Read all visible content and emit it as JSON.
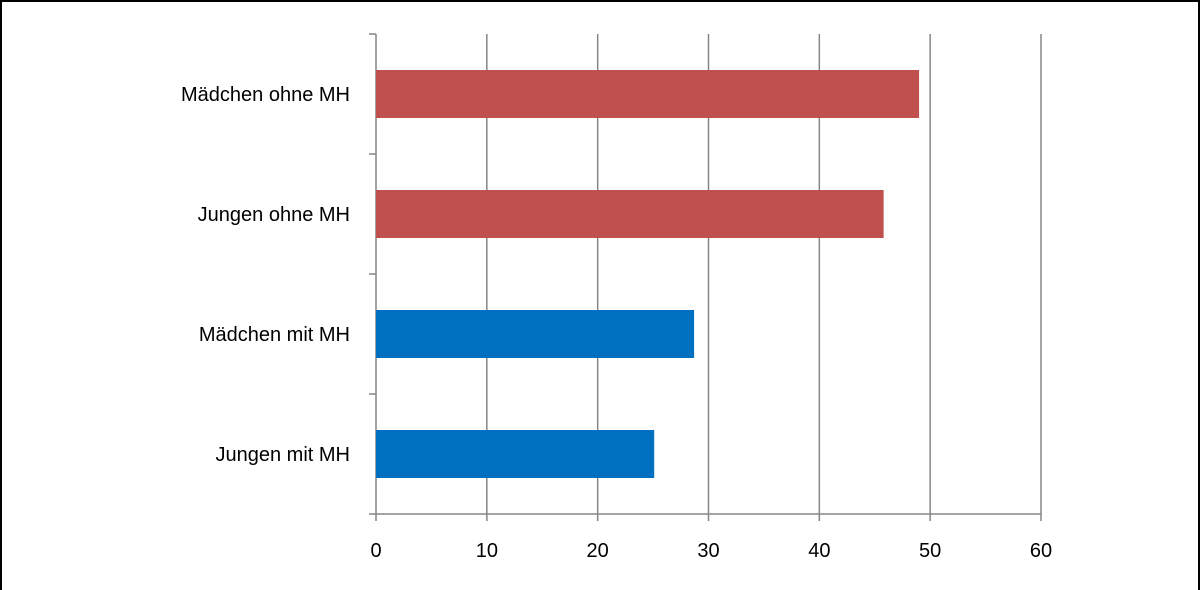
{
  "chart_data": {
    "type": "bar",
    "orientation": "horizontal",
    "categories": [
      "Mädchen ohne MH",
      "Jungen ohne MH",
      "Mädchen mit MH",
      "Jungen mit MH"
    ],
    "values": [
      49,
      45.8,
      28.7,
      25.1
    ],
    "bar_colors": [
      "#c0504d",
      "#c0504d",
      "#0070c0",
      "#0070c0"
    ],
    "xlim": [
      0,
      60
    ],
    "xticks": [
      "0",
      "10",
      "20",
      "30",
      "40",
      "50",
      "60"
    ],
    "grid": "vertical",
    "title": "",
    "xlabel": "",
    "ylabel": ""
  }
}
